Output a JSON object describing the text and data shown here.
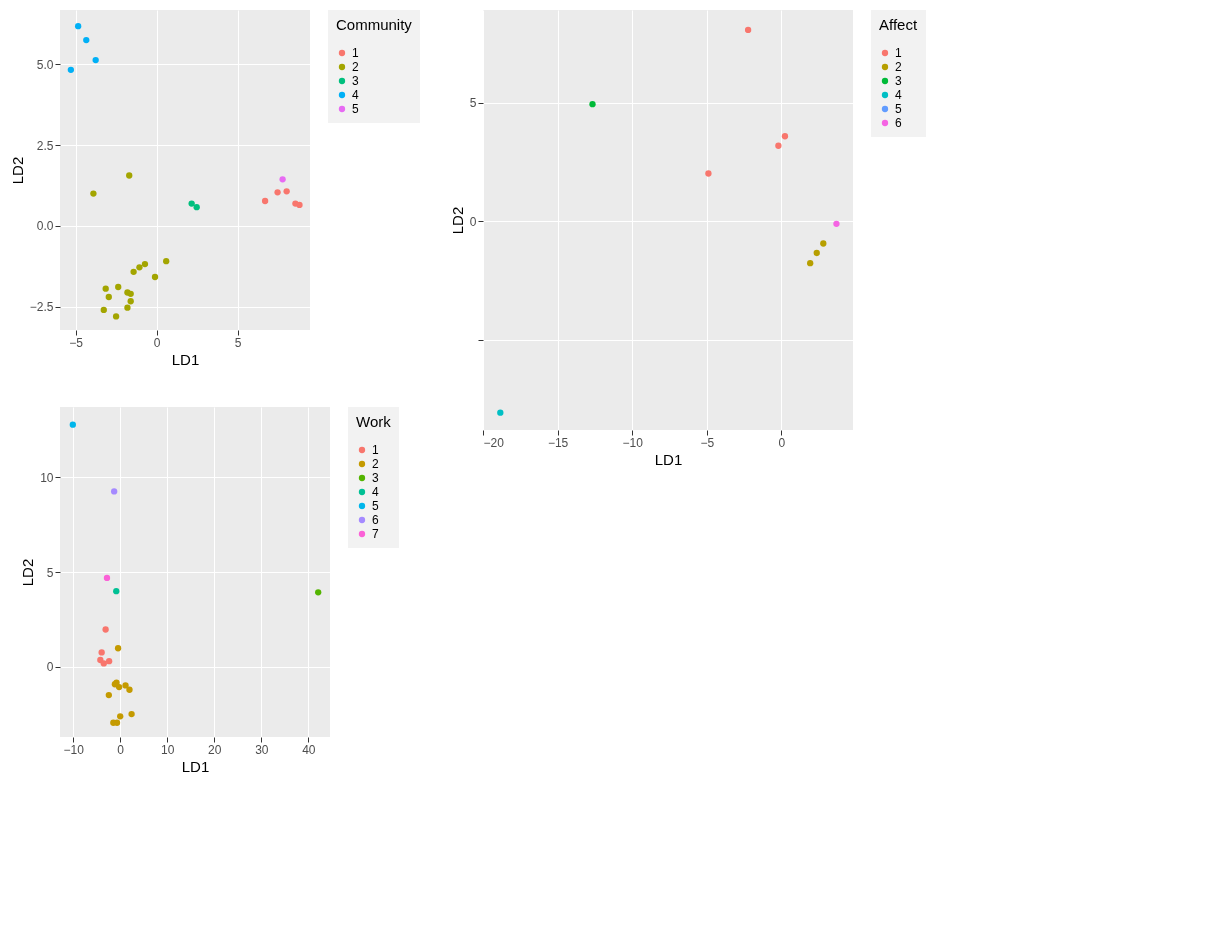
{
  "chart_data": [
    {
      "type": "scatter",
      "xlabel": "LD1",
      "ylabel": "LD2",
      "legend_title": "Community",
      "legend": "right",
      "grid": true,
      "marker": "circle",
      "xlim": [
        -5.96,
        9.46
      ],
      "ylim": [
        -3.22,
        6.68
      ],
      "xticks": [
        -5,
        0,
        5
      ],
      "yticks": [
        -2.5,
        {
          "value": 0,
          "label": "0.0"
        },
        2.5,
        {
          "value": 5,
          "label": "5.0"
        }
      ],
      "series": [
        {
          "name": "1",
          "color": "#F8766D",
          "x": [
            6.69,
            7.46,
            8.02,
            8.56,
            8.81
          ],
          "values": [
            0.77,
            1.04,
            1.07,
            0.69,
            0.65
          ]
        },
        {
          "name": "2",
          "color": "#A3A500",
          "x": [
            -1.69,
            -3.9,
            0.59,
            -0.72,
            -1.06,
            -1.42,
            -0.1,
            -3.14,
            -2.37,
            -2.95,
            -1.8,
            -1.6,
            -1.6,
            -1.8,
            -3.26,
            -2.5
          ],
          "values": [
            1.56,
            1.0,
            -1.09,
            -1.18,
            -1.28,
            -1.42,
            -1.58,
            -1.94,
            -1.89,
            -2.2,
            -2.06,
            -2.1,
            -2.33,
            -2.53,
            -2.6,
            -2.8
          ]
        },
        {
          "name": "3",
          "color": "#00BF7D",
          "x": [
            2.16,
            2.47
          ],
          "values": [
            0.69,
            0.58
          ]
        },
        {
          "name": "4",
          "color": "#00B0F6",
          "x": [
            -4.84,
            -4.34,
            -3.76,
            -5.29
          ],
          "values": [
            6.18,
            5.75,
            5.13,
            4.83
          ]
        },
        {
          "name": "5",
          "color": "#E76BF3",
          "x": [
            7.77
          ],
          "values": [
            1.44
          ]
        }
      ]
    },
    {
      "type": "scatter",
      "xlabel": "LD1",
      "ylabel": "LD2",
      "legend_title": "Work",
      "legend": "right",
      "grid": true,
      "marker": "circle",
      "xlim": [
        -12.8,
        44.6
      ],
      "ylim": [
        -3.7,
        13.7
      ],
      "xticks": [
        -10,
        0,
        10,
        20,
        30,
        40
      ],
      "yticks": [
        0,
        5,
        10
      ],
      "series": [
        {
          "name": "1",
          "color": "#F8766D",
          "x": [
            -3.1,
            -3.94,
            -4.22,
            -3.49,
            -2.36
          ],
          "values": [
            1.97,
            0.76,
            0.36,
            0.18,
            0.3
          ]
        },
        {
          "name": "2",
          "color": "#C49A00",
          "x": [
            -0.45,
            -0.79,
            -0.23,
            -1.13,
            1.13,
            1.97,
            -2.42,
            2.42,
            0,
            -1.46,
            -0.68
          ],
          "values": [
            0.98,
            -0.83,
            -1.07,
            -0.92,
            -0.98,
            -1.21,
            -1.49,
            -2.49,
            -2.61,
            -2.95,
            -2.95
          ]
        },
        {
          "name": "3",
          "color": "#53B400",
          "x": [
            42.09
          ],
          "values": [
            3.93
          ]
        },
        {
          "name": "4",
          "color": "#00C094",
          "x": [
            -0.84
          ],
          "values": [
            3.99
          ]
        },
        {
          "name": "5",
          "color": "#00B6EB",
          "x": [
            -10.07
          ],
          "values": [
            12.77
          ]
        },
        {
          "name": "6",
          "color": "#A58AFF",
          "x": [
            -1.29
          ],
          "values": [
            9.25
          ]
        },
        {
          "name": "7",
          "color": "#FB61D7",
          "x": [
            -2.81
          ],
          "values": [
            4.69
          ]
        }
      ]
    },
    {
      "type": "scatter",
      "xlabel": "LD1",
      "ylabel": "LD2",
      "legend_title": "Affect",
      "legend": "right",
      "grid": true,
      "marker": "circle",
      "xlim": [
        -20,
        4.8
      ],
      "ylim": [
        -8.8,
        8.9
      ],
      "xticks": [
        -20,
        -15,
        -10,
        -5,
        0
      ],
      "yticks": [
        {
          "value": -5,
          "label": null
        },
        0,
        5
      ],
      "series": [
        {
          "name": "1",
          "color": "#F8766D",
          "x": [
            -2.23,
            0.24,
            -0.2,
            -4.89
          ],
          "values": [
            8.06,
            3.58,
            3.18,
            2.01
          ]
        },
        {
          "name": "2",
          "color": "#B79F00",
          "x": [
            2.81,
            2.37,
            1.93
          ],
          "values": [
            -0.94,
            -1.34,
            -1.77
          ]
        },
        {
          "name": "3",
          "color": "#00BA38",
          "x": [
            -12.66
          ],
          "values": [
            4.93
          ]
        },
        {
          "name": "4",
          "color": "#00BFC4",
          "x": [
            -18.84
          ],
          "values": [
            -8.07
          ]
        },
        {
          "name": "5",
          "color": "#619CFF"
        },
        {
          "name": "6",
          "color": "#F564E3",
          "x": [
            3.69
          ],
          "values": [
            -0.11
          ]
        }
      ]
    }
  ]
}
